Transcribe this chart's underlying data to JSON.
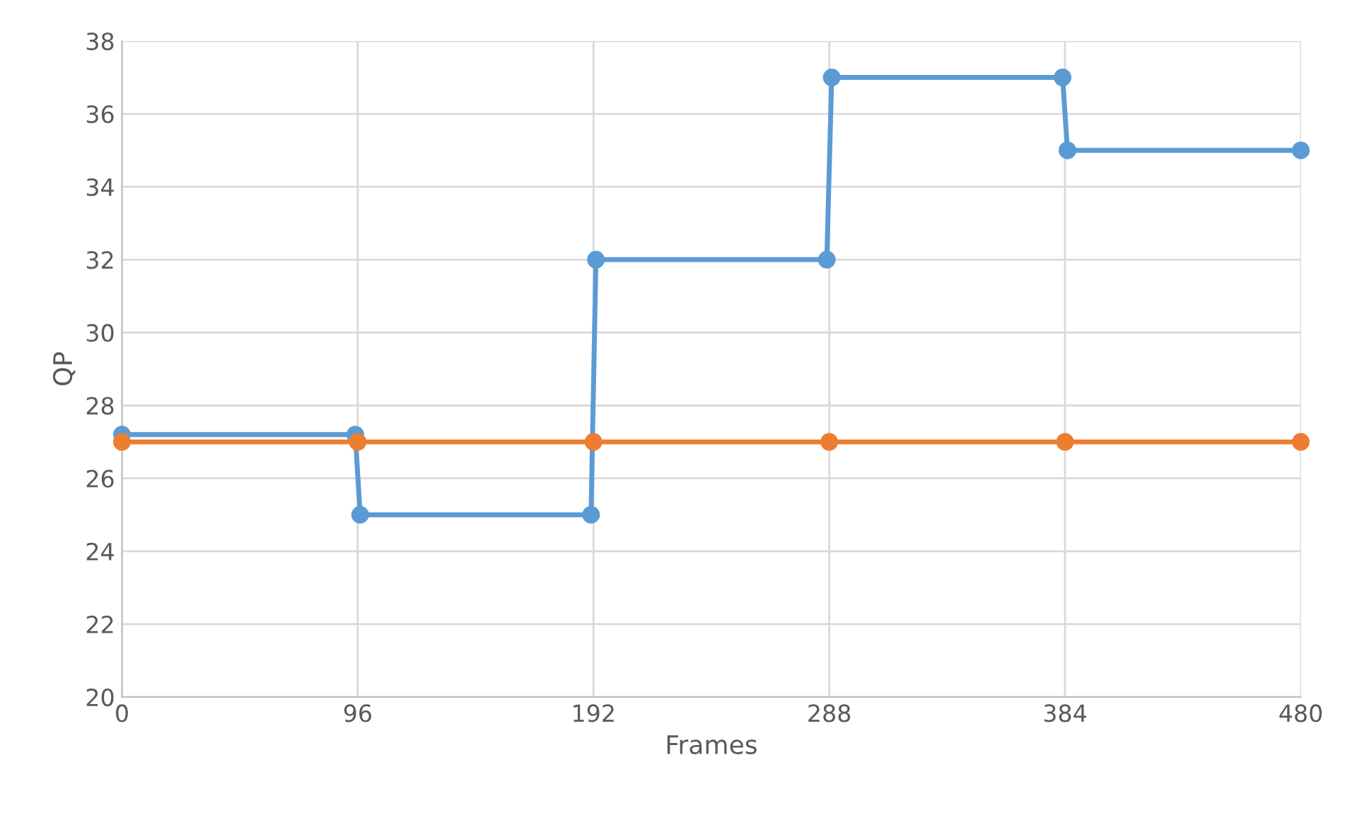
{
  "chart_data": {
    "type": "line",
    "xlabel": "Frames",
    "ylabel": "QP",
    "series": [
      {
        "color": "#5b9bd5",
        "x": [
          0,
          95,
          97,
          191,
          193,
          287,
          289,
          383,
          385,
          480
        ],
        "values": [
          27.2,
          27.2,
          25,
          25,
          32,
          32,
          37,
          37,
          35,
          35
        ]
      },
      {
        "color": "#ed7d31",
        "x": [
          0,
          96,
          192,
          288,
          384,
          480
        ],
        "values": [
          27,
          27,
          27,
          27,
          27,
          27
        ]
      }
    ],
    "xlim": [
      0,
      480
    ],
    "xticks": [
      0,
      96,
      192,
      288,
      384,
      480
    ],
    "ylim": [
      20,
      38
    ],
    "yticks": [
      20,
      22,
      24,
      26,
      28,
      30,
      32,
      34,
      36,
      38
    ],
    "grid": true,
    "marker": "circle",
    "line_style": "solid",
    "legend": false
  }
}
